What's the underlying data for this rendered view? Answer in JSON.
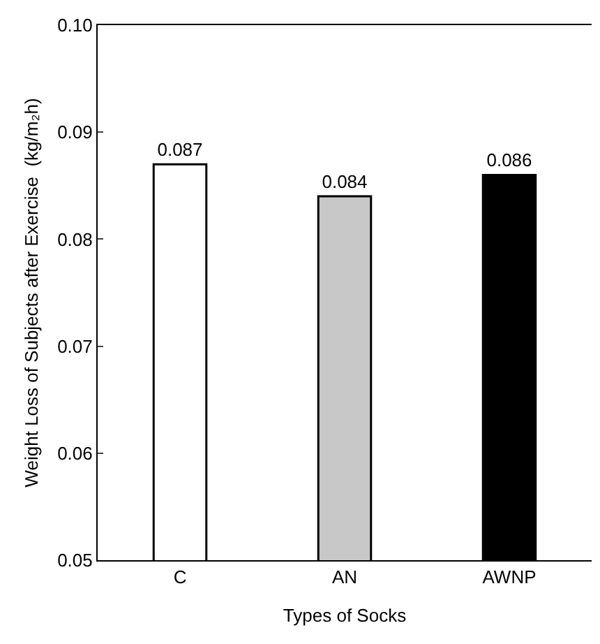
{
  "chart_data": {
    "type": "bar",
    "xlabel": "Types of Socks",
    "ylabel": "Weight Loss of Subjects after Exercise  (kg/m₂h)",
    "categories": [
      "C",
      "AN",
      "AWNP"
    ],
    "values": [
      0.087,
      0.084,
      0.086
    ],
    "colors": [
      "#ffffff",
      "#c8c8c8",
      "#000000"
    ],
    "ylim": [
      0.05,
      0.1
    ],
    "yticks": [
      0.05,
      0.06,
      0.07,
      0.08,
      0.09,
      {
        "value": 0.1,
        "label": "0.10"
      }
    ],
    "data_labels": true
  }
}
